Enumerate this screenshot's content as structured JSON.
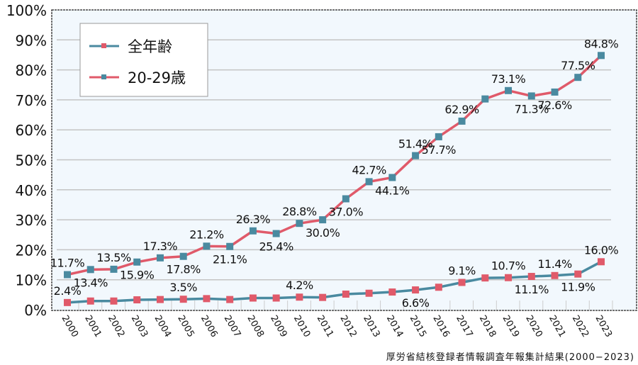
{
  "chart_data": {
    "type": "line",
    "title": "",
    "xlabel": "",
    "ylabel": "",
    "ylim": [
      0,
      100
    ],
    "y_ticks": [
      "0%",
      "10%",
      "20%",
      "30%",
      "40%",
      "50%",
      "60%",
      "70%",
      "80%",
      "90%",
      "100%"
    ],
    "grid": "horizontal",
    "legend_position": "top-left",
    "source": "厚労省結核登録者情報調査年報集計結果(2000−2023)",
    "x": [
      "2000",
      "2001",
      "2002",
      "2003",
      "2004",
      "2005",
      "2006",
      "2007",
      "2008",
      "2009",
      "2010",
      "2011",
      "2012",
      "2013",
      "2014",
      "2015",
      "2016",
      "2017",
      "2018",
      "2019",
      "2020",
      "2021",
      "2022",
      "2023"
    ],
    "series": [
      {
        "name": "全年齢",
        "line_color": "#4a8aa0",
        "marker_color": "#e05a6a",
        "values": [
          2.4,
          2.9,
          2.9,
          3.3,
          3.4,
          3.5,
          3.7,
          3.4,
          3.9,
          3.9,
          4.2,
          4.1,
          5.2,
          5.5,
          5.9,
          6.6,
          7.5,
          9.1,
          10.6,
          10.7,
          11.1,
          11.4,
          11.9,
          16.0
        ],
        "labels": [
          "2.4%",
          null,
          null,
          null,
          null,
          "3.5%",
          null,
          null,
          null,
          null,
          "4.2%",
          null,
          null,
          null,
          null,
          "6.6%",
          null,
          "9.1%",
          null,
          "10.7%",
          "11.1%",
          "11.4%",
          "11.9%",
          "16.0%"
        ]
      },
      {
        "name": "20-29歳",
        "line_color": "#e05a6a",
        "marker_color": "#4a8aa0",
        "values": [
          11.7,
          13.4,
          13.5,
          15.9,
          17.3,
          17.8,
          21.2,
          21.1,
          26.3,
          25.4,
          28.8,
          30.0,
          37.0,
          42.7,
          44.1,
          51.4,
          57.7,
          62.9,
          70.3,
          73.1,
          71.3,
          72.6,
          77.5,
          84.8
        ],
        "labels": [
          "11.7%",
          "13.4%",
          "13.5%",
          "15.9%",
          "17.3%",
          "17.8%",
          "21.2%",
          "21.1%",
          "26.3%",
          "25.4%",
          "28.8%",
          "30.0%",
          "37.0%",
          "42.7%",
          "44.1%",
          "51.4%",
          "57.7%",
          "62.9%",
          null,
          "73.1%",
          "71.3%",
          "72.6%",
          "77.5%",
          "84.8%"
        ]
      }
    ]
  }
}
